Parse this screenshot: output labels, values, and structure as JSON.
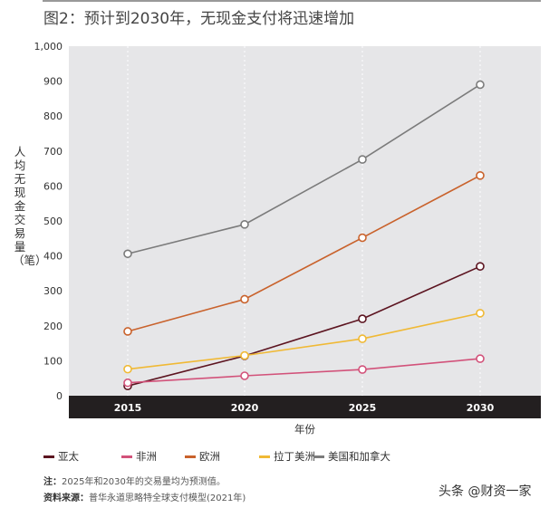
{
  "title": "图2：预计到2030年，无现金支付将迅速增加",
  "chart_data": {
    "type": "line",
    "ylabel": "人均无现金交易量（笔）",
    "xlabel": "年份",
    "x": [
      "2015",
      "2020",
      "2025",
      "2030"
    ],
    "ylim": [
      0,
      1000
    ],
    "yticks": [
      "0",
      "100",
      "200",
      "300",
      "400",
      "500",
      "600",
      "700",
      "800",
      "900",
      "1,000"
    ],
    "grid": "vertical dotted",
    "legend_position": "bottom",
    "background": "#e6e6e8",
    "series": [
      {
        "name": "亚太",
        "color": "#5c1420",
        "values": [
          28,
          114,
          220,
          370
        ]
      },
      {
        "name": "非洲",
        "color": "#d2527a",
        "values": [
          37,
          57,
          75,
          106
        ]
      },
      {
        "name": "欧洲",
        "color": "#c9622c",
        "values": [
          184,
          276,
          452,
          630
        ]
      },
      {
        "name": "拉丁美洲",
        "color": "#f0b935",
        "values": [
          76,
          115,
          163,
          236
        ]
      },
      {
        "name": "美国和加拿大",
        "color": "#7b7b7b",
        "values": [
          406,
          490,
          676,
          890
        ]
      }
    ]
  },
  "note_label": "注：",
  "note": "2025年和2030年的交易量均为预测值。",
  "source_label": "资料来源：",
  "source": "普华永道思略特全球支付模型(2021年)",
  "watermark": "头条 @财资一家"
}
